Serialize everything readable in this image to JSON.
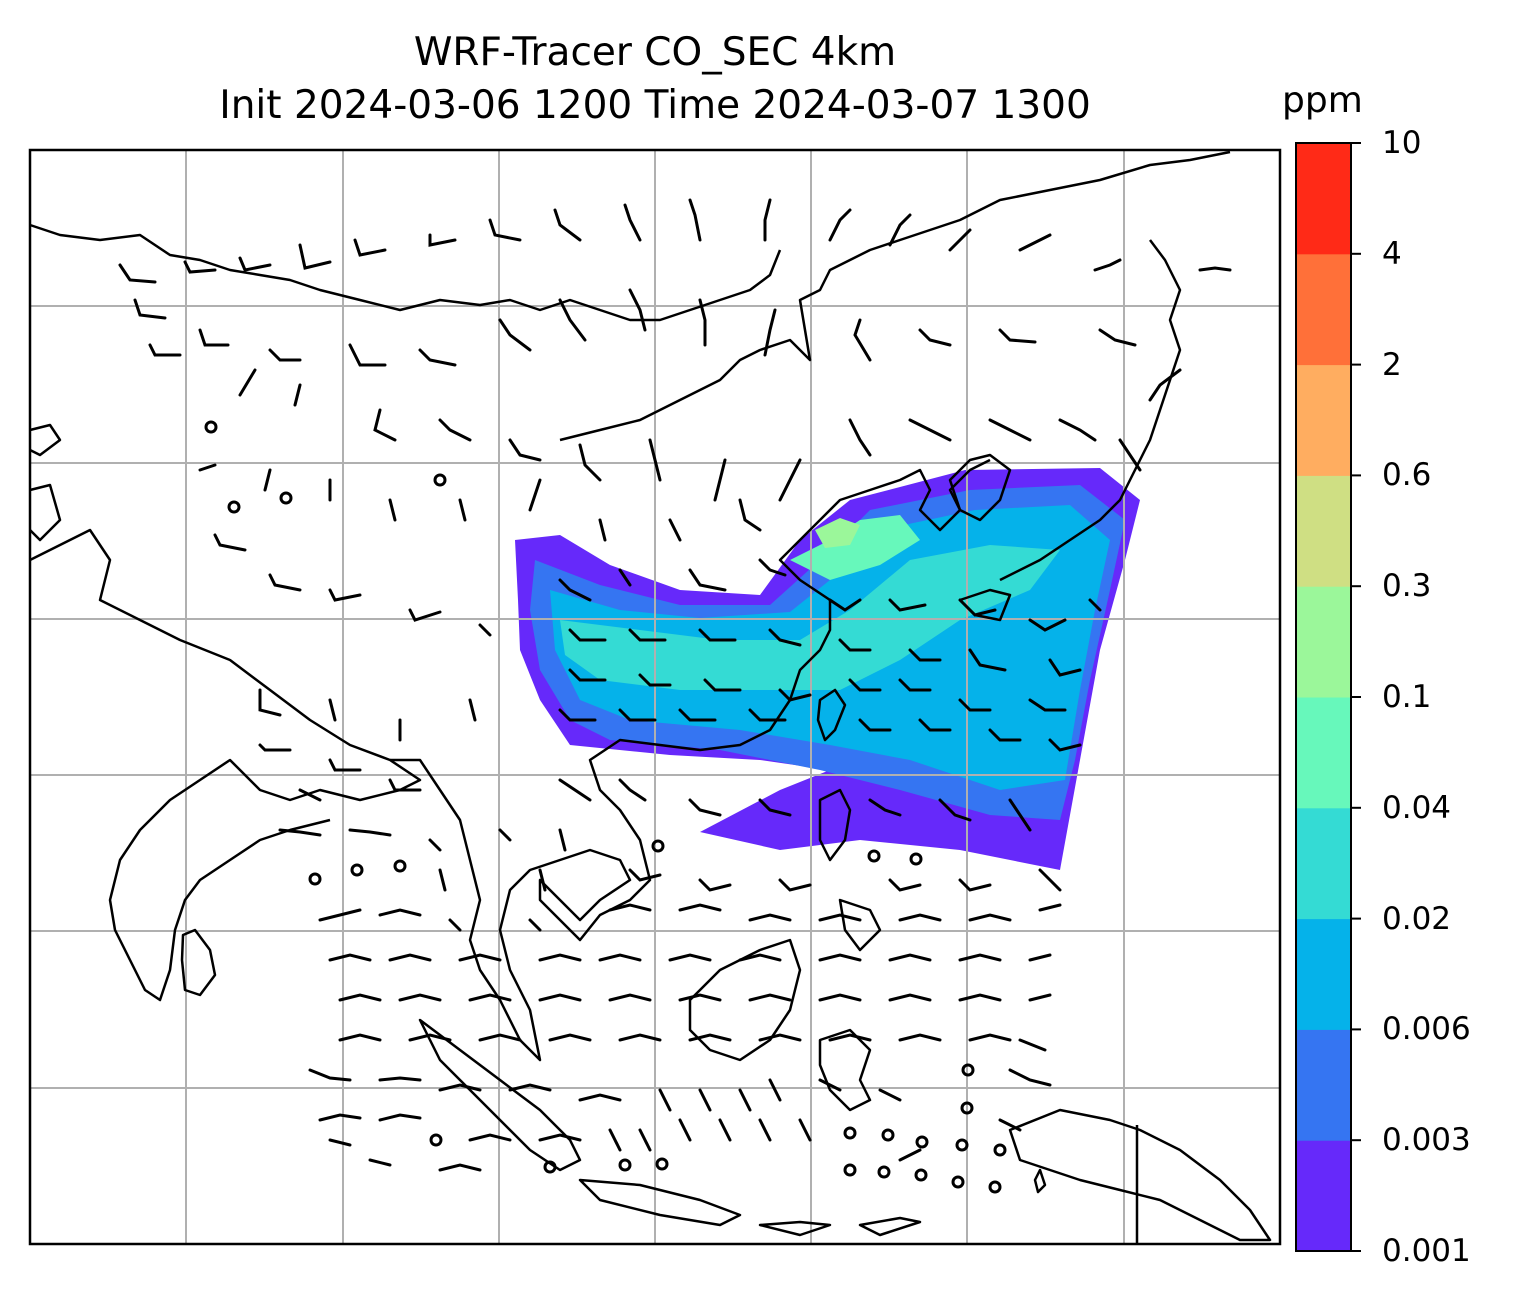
{
  "title": {
    "line1": "WRF-Tracer CO_SEC 4km",
    "line2": "Init 2024-03-06 1200 Time 2024-03-07 1300"
  },
  "colorbar": {
    "unit": "ppm",
    "levels": [
      "0.001",
      "0.003",
      "0.006",
      "0.02",
      "0.04",
      "0.1",
      "0.3",
      "0.6",
      "2",
      "4",
      "10"
    ],
    "colors": [
      "#6629fa",
      "#3575f2",
      "#05b2ea",
      "#34dbd4",
      "#67f8bb",
      "#9bf79a",
      "#cfdf83",
      "#ffad60",
      "#ff7039",
      "#ff2a17"
    ]
  },
  "map": {
    "gridlines": true,
    "coastline_color": "#000000",
    "grid_color": "#b0b0b0"
  }
}
